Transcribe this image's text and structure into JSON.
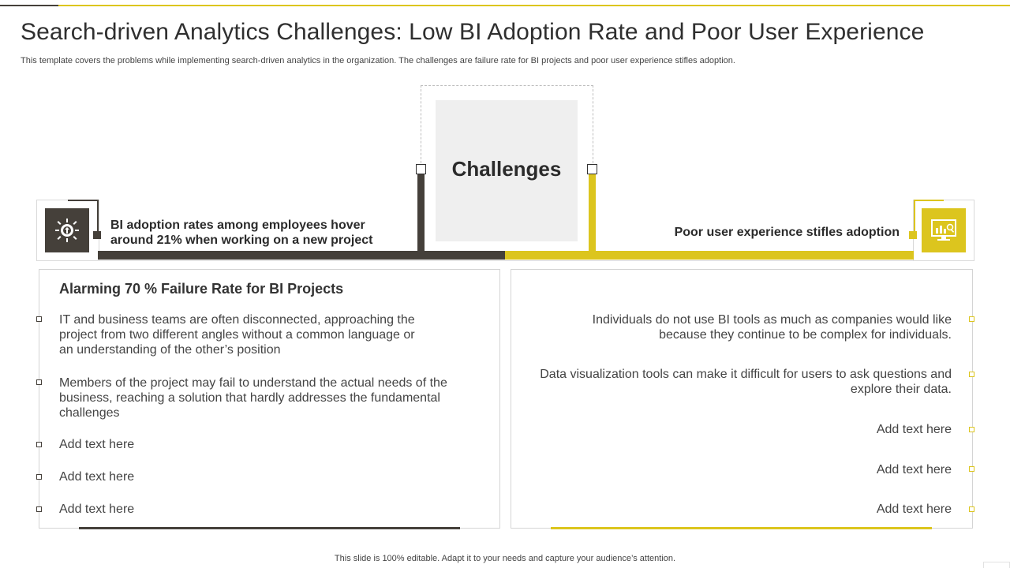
{
  "header": {
    "title": "Search-driven Analytics Challenges: Low BI Adoption Rate and Poor User Experience",
    "subtitle": "This template covers the problems while implementing search-driven analytics in the organization. The challenges are failure rate for BI projects and poor user experience stifles adoption."
  },
  "center": {
    "label": "Challenges"
  },
  "left": {
    "icon": "bi-gear-icon",
    "heading_line1": "BI adoption rates among employees hover",
    "heading_line2": "around 21% when working on a new project",
    "panel_title": "Alarming 70 % Failure Rate for BI Projects",
    "items": [
      "IT and business teams are often disconnected, approaching the project from two different angles without a common language or an understanding of the other’s position",
      "Members of the project may fail to understand the actual needs of the business, reaching a solution that hardly addresses the fundamental  challenges",
      "Add text here",
      "Add text here",
      "Add text here"
    ]
  },
  "right": {
    "icon": "analytics-monitor-icon",
    "heading": "Poor user experience stifles adoption",
    "items": [
      "Individuals  do not use BI tools as much as companies would like because they continue to be complex for individuals.",
      "Data visualization tools can make it difficult for users to ask questions and explore their data.",
      "Add text here",
      "Add text here",
      "Add text here"
    ]
  },
  "footer": {
    "text": "This slide is 100% editable. Adapt it to your needs and capture your audience’s attention."
  },
  "colors": {
    "dark": "#45403a",
    "yellow": "#dcc51e",
    "panel_grey": "#efefef"
  }
}
